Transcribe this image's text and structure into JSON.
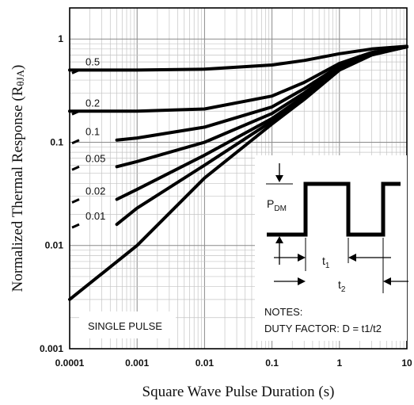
{
  "chart_data": {
    "type": "line",
    "xlabel": "Square Wave Pulse Duration (s)",
    "ylabel": "Normalized Thermal Response (R",
    "ylabel_sub": "θJA",
    "ylabel_close": ")",
    "x_scale": "log",
    "y_scale": "log",
    "xlim": [
      0.0001,
      10
    ],
    "ylim": [
      0.001,
      2
    ],
    "grid": true,
    "x_ticks": [
      "0.0001",
      "0.001",
      "0.01",
      "0.1",
      "1",
      "10"
    ],
    "y_ticks": [
      "0.001",
      "0.01",
      "0.1",
      "1"
    ],
    "series": [
      {
        "name": "0.5",
        "x": [
          0.0001,
          0.001,
          0.01,
          0.1,
          0.3,
          1,
          3,
          10
        ],
        "y": [
          0.5,
          0.5,
          0.51,
          0.56,
          0.62,
          0.72,
          0.8,
          0.85
        ]
      },
      {
        "name": "0.2",
        "x": [
          0.0001,
          0.001,
          0.01,
          0.1,
          0.3,
          1,
          3,
          10
        ],
        "y": [
          0.2,
          0.2,
          0.21,
          0.28,
          0.38,
          0.58,
          0.74,
          0.84
        ]
      },
      {
        "name": "0.1",
        "x": [
          0.0005,
          0.001,
          0.01,
          0.1,
          0.3,
          1,
          3,
          10
        ],
        "y": [
          0.105,
          0.11,
          0.14,
          0.22,
          0.33,
          0.55,
          0.73,
          0.84
        ]
      },
      {
        "name": "0.05",
        "x": [
          0.0005,
          0.001,
          0.01,
          0.1,
          0.3,
          1,
          3,
          10
        ],
        "y": [
          0.058,
          0.065,
          0.1,
          0.19,
          0.3,
          0.53,
          0.72,
          0.84
        ]
      },
      {
        "name": "0.02",
        "x": [
          0.0005,
          0.001,
          0.01,
          0.1,
          0.3,
          1,
          3,
          10
        ],
        "y": [
          0.028,
          0.035,
          0.075,
          0.17,
          0.28,
          0.52,
          0.71,
          0.84
        ]
      },
      {
        "name": "0.01",
        "x": [
          0.0005,
          0.001,
          0.01,
          0.1,
          0.3,
          1,
          3,
          10
        ],
        "y": [
          0.016,
          0.023,
          0.06,
          0.16,
          0.27,
          0.51,
          0.71,
          0.84
        ]
      },
      {
        "name": "SINGLE PULSE",
        "x": [
          0.0001,
          0.001,
          0.01,
          0.1,
          0.3,
          1,
          3,
          10
        ],
        "y": [
          0.003,
          0.01,
          0.045,
          0.15,
          0.26,
          0.5,
          0.7,
          0.84
        ]
      }
    ],
    "duty_labels": [
      "0.5",
      "0.2",
      "0.1",
      "0.05",
      "0.02",
      "0.01"
    ],
    "single_pulse_label": "SINGLE PULSE",
    "inset": {
      "pdm": "P",
      "pdm_sub": "DM",
      "t1": "t",
      "t1_sub": "1",
      "t2": "t",
      "t2_sub": "2",
      "notes_title": "NOTES:",
      "notes_text": "DUTY FACTOR: D = t1/t2"
    }
  }
}
